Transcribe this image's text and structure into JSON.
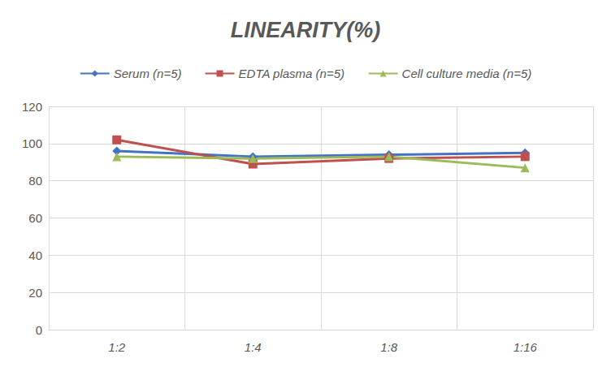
{
  "chart_data": {
    "type": "line",
    "title": "LINEARITY(%)",
    "categories": [
      "1:2",
      "1:4",
      "1:8",
      "1:16"
    ],
    "series": [
      {
        "name": "Serum (n=5)",
        "color": "#4472c4",
        "marker": "diamond",
        "values": [
          96,
          93,
          94,
          95
        ]
      },
      {
        "name": "EDTA plasma (n=5)",
        "color": "#c0504d",
        "marker": "square",
        "values": [
          102,
          89,
          92,
          93
        ]
      },
      {
        "name": "Cell culture media (n=5)",
        "color": "#9bbb59",
        "marker": "triangle",
        "values": [
          93,
          92,
          93,
          87
        ]
      }
    ],
    "ylim": [
      0,
      120
    ],
    "yticks": [
      0,
      20,
      40,
      60,
      80,
      100,
      120
    ],
    "grid": true,
    "legend": "top"
  }
}
